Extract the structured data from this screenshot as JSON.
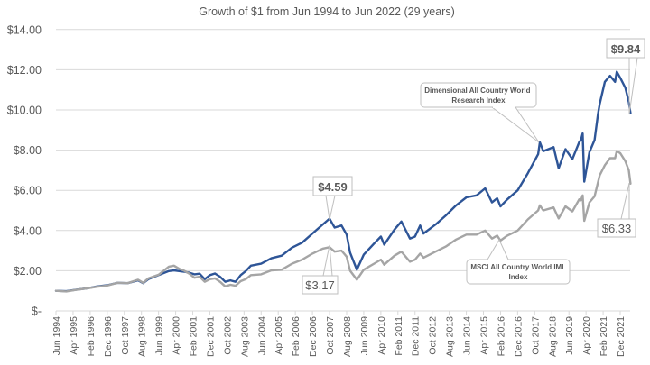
{
  "chart_data": {
    "type": "line",
    "title": "Growth of $1 from Jun 1994 to Jun 2022 (29 years)",
    "xlabel": "",
    "ylabel": "",
    "ylim": [
      0,
      14
    ],
    "grid": "horizontal",
    "legend": "none (series labeled by callouts)",
    "y_ticks": [
      {
        "value": 0,
        "label": "$-"
      },
      {
        "value": 2,
        "label": "$2.00"
      },
      {
        "value": 4,
        "label": "$4.00"
      },
      {
        "value": 6,
        "label": "$6.00"
      },
      {
        "value": 8,
        "label": "$8.00"
      },
      {
        "value": 10,
        "label": "$10.00"
      },
      {
        "value": 12,
        "label": "$12.00"
      },
      {
        "value": 14,
        "label": "$14.00"
      }
    ],
    "x_tick_labels": [
      "Jun 1994",
      "Apr 1995",
      "Feb 1996",
      "Dec 1996",
      "Oct 1997",
      "Aug 1998",
      "Jun 1999",
      "Apr 2000",
      "Feb 2001",
      "Dec 2001",
      "Oct 2002",
      "Aug 2003",
      "Jun 2004",
      "Apr 2005",
      "Feb 2006",
      "Dec 2006",
      "Oct 2007",
      "Aug 2008",
      "Jun 2009",
      "Apr 2010",
      "Feb 2011",
      "Dec 2011",
      "Oct 2012",
      "Aug 2013",
      "Jun 2014",
      "Apr 2015",
      "Feb 2016",
      "Dec 2016",
      "Oct 2017",
      "Aug 2018",
      "Jun 2019",
      "Apr 2020",
      "Feb 2021",
      "Dec 2021"
    ],
    "x_range": [
      "1994-06",
      "2022-06"
    ],
    "series": [
      {
        "name": "Dimensional All Country World Research Index",
        "color": "#2E5597",
        "points": [
          [
            "1994-06",
            1.0
          ],
          [
            "1994-12",
            0.98
          ],
          [
            "1995-06",
            1.06
          ],
          [
            "1995-12",
            1.12
          ],
          [
            "1996-06",
            1.22
          ],
          [
            "1996-12",
            1.28
          ],
          [
            "1997-06",
            1.4
          ],
          [
            "1997-12",
            1.38
          ],
          [
            "1998-06",
            1.52
          ],
          [
            "1998-09",
            1.38
          ],
          [
            "1998-12",
            1.58
          ],
          [
            "1999-06",
            1.78
          ],
          [
            "1999-12",
            1.98
          ],
          [
            "2000-03",
            2.02
          ],
          [
            "2000-06",
            1.98
          ],
          [
            "2000-09",
            1.95
          ],
          [
            "2000-12",
            1.9
          ],
          [
            "2001-03",
            1.82
          ],
          [
            "2001-06",
            1.85
          ],
          [
            "2001-09",
            1.58
          ],
          [
            "2001-12",
            1.78
          ],
          [
            "2002-03",
            1.86
          ],
          [
            "2002-06",
            1.7
          ],
          [
            "2002-09",
            1.45
          ],
          [
            "2002-12",
            1.52
          ],
          [
            "2003-03",
            1.45
          ],
          [
            "2003-06",
            1.78
          ],
          [
            "2003-09",
            1.98
          ],
          [
            "2003-12",
            2.25
          ],
          [
            "2004-06",
            2.35
          ],
          [
            "2004-12",
            2.62
          ],
          [
            "2005-06",
            2.75
          ],
          [
            "2005-12",
            3.15
          ],
          [
            "2006-06",
            3.4
          ],
          [
            "2006-12",
            3.85
          ],
          [
            "2007-06",
            4.3
          ],
          [
            "2007-10",
            4.59
          ],
          [
            "2008-01",
            4.15
          ],
          [
            "2008-05",
            4.25
          ],
          [
            "2008-08",
            3.8
          ],
          [
            "2008-10",
            2.9
          ],
          [
            "2009-02",
            2.05
          ],
          [
            "2009-06",
            2.8
          ],
          [
            "2009-12",
            3.35
          ],
          [
            "2010-04",
            3.7
          ],
          [
            "2010-06",
            3.3
          ],
          [
            "2010-12",
            4.05
          ],
          [
            "2011-04",
            4.45
          ],
          [
            "2011-09",
            3.6
          ],
          [
            "2011-12",
            3.7
          ],
          [
            "2012-03",
            4.25
          ],
          [
            "2012-05",
            3.85
          ],
          [
            "2012-12",
            4.3
          ],
          [
            "2013-06",
            4.75
          ],
          [
            "2013-12",
            5.25
          ],
          [
            "2014-06",
            5.65
          ],
          [
            "2014-12",
            5.75
          ],
          [
            "2015-05",
            6.1
          ],
          [
            "2015-09",
            5.4
          ],
          [
            "2015-12",
            5.6
          ],
          [
            "2016-02",
            5.2
          ],
          [
            "2016-06",
            5.55
          ],
          [
            "2016-12",
            6.0
          ],
          [
            "2017-06",
            6.85
          ],
          [
            "2017-12",
            7.8
          ],
          [
            "2018-01",
            8.39
          ],
          [
            "2018-03",
            7.95
          ],
          [
            "2018-09",
            8.15
          ],
          [
            "2018-12",
            7.1
          ],
          [
            "2019-04",
            8.05
          ],
          [
            "2019-08",
            7.55
          ],
          [
            "2019-12",
            8.4
          ],
          [
            "2020-01",
            8.5
          ],
          [
            "2020-02",
            8.83
          ],
          [
            "2020-03",
            6.43
          ],
          [
            "2020-06",
            7.9
          ],
          [
            "2020-09",
            8.5
          ],
          [
            "2020-11",
            9.8
          ],
          [
            "2020-12",
            10.3
          ],
          [
            "2021-03",
            11.4
          ],
          [
            "2021-06",
            11.7
          ],
          [
            "2021-09",
            11.4
          ],
          [
            "2021-10",
            11.9
          ],
          [
            "2021-12",
            11.6
          ],
          [
            "2022-03",
            11.1
          ],
          [
            "2022-05",
            10.4
          ],
          [
            "2022-06",
            9.84
          ]
        ]
      },
      {
        "name": "MSCI All Country World IMI Index",
        "color": "#A5A5A5",
        "points": [
          [
            "1994-06",
            1.0
          ],
          [
            "1994-12",
            0.97
          ],
          [
            "1995-06",
            1.05
          ],
          [
            "1995-12",
            1.12
          ],
          [
            "1996-06",
            1.2
          ],
          [
            "1996-12",
            1.26
          ],
          [
            "1997-06",
            1.4
          ],
          [
            "1997-12",
            1.38
          ],
          [
            "1998-06",
            1.55
          ],
          [
            "1998-09",
            1.4
          ],
          [
            "1998-12",
            1.62
          ],
          [
            "1999-06",
            1.8
          ],
          [
            "1999-12",
            2.2
          ],
          [
            "2000-03",
            2.25
          ],
          [
            "2000-06",
            2.1
          ],
          [
            "2000-09",
            2.0
          ],
          [
            "2000-12",
            1.85
          ],
          [
            "2001-03",
            1.65
          ],
          [
            "2001-06",
            1.7
          ],
          [
            "2001-09",
            1.45
          ],
          [
            "2001-12",
            1.58
          ],
          [
            "2002-03",
            1.62
          ],
          [
            "2002-06",
            1.45
          ],
          [
            "2002-09",
            1.22
          ],
          [
            "2002-12",
            1.3
          ],
          [
            "2003-03",
            1.25
          ],
          [
            "2003-06",
            1.48
          ],
          [
            "2003-09",
            1.58
          ],
          [
            "2003-12",
            1.78
          ],
          [
            "2004-06",
            1.82
          ],
          [
            "2004-12",
            2.02
          ],
          [
            "2005-06",
            2.05
          ],
          [
            "2005-12",
            2.35
          ],
          [
            "2006-06",
            2.55
          ],
          [
            "2006-12",
            2.85
          ],
          [
            "2007-06",
            3.1
          ],
          [
            "2007-10",
            3.17
          ],
          [
            "2008-01",
            2.95
          ],
          [
            "2008-05",
            3.0
          ],
          [
            "2008-08",
            2.7
          ],
          [
            "2008-10",
            2.0
          ],
          [
            "2009-02",
            1.55
          ],
          [
            "2009-06",
            2.05
          ],
          [
            "2009-12",
            2.35
          ],
          [
            "2010-04",
            2.55
          ],
          [
            "2010-06",
            2.3
          ],
          [
            "2010-12",
            2.75
          ],
          [
            "2011-04",
            2.95
          ],
          [
            "2011-09",
            2.45
          ],
          [
            "2011-12",
            2.55
          ],
          [
            "2012-03",
            2.85
          ],
          [
            "2012-05",
            2.65
          ],
          [
            "2012-12",
            2.95
          ],
          [
            "2013-06",
            3.2
          ],
          [
            "2013-12",
            3.55
          ],
          [
            "2014-06",
            3.8
          ],
          [
            "2014-12",
            3.8
          ],
          [
            "2015-05",
            4.0
          ],
          [
            "2015-09",
            3.6
          ],
          [
            "2015-12",
            3.75
          ],
          [
            "2016-02",
            3.5
          ],
          [
            "2016-06",
            3.75
          ],
          [
            "2016-12",
            4.0
          ],
          [
            "2017-06",
            4.55
          ],
          [
            "2017-12",
            5.0
          ],
          [
            "2018-01",
            5.25
          ],
          [
            "2018-03",
            5.0
          ],
          [
            "2018-09",
            5.15
          ],
          [
            "2018-12",
            4.6
          ],
          [
            "2019-04",
            5.2
          ],
          [
            "2019-08",
            4.95
          ],
          [
            "2019-12",
            5.55
          ],
          [
            "2020-01",
            5.5
          ],
          [
            "2020-02",
            5.75
          ],
          [
            "2020-03",
            4.48
          ],
          [
            "2020-06",
            5.4
          ],
          [
            "2020-09",
            5.7
          ],
          [
            "2020-11",
            6.4
          ],
          [
            "2020-12",
            6.75
          ],
          [
            "2021-03",
            7.25
          ],
          [
            "2021-06",
            7.6
          ],
          [
            "2021-09",
            7.6
          ],
          [
            "2021-10",
            7.95
          ],
          [
            "2021-12",
            7.85
          ],
          [
            "2022-03",
            7.45
          ],
          [
            "2022-05",
            7.0
          ],
          [
            "2022-06",
            6.33
          ]
        ]
      }
    ],
    "annotations": {
      "dfa_end": {
        "text": "$9.84",
        "series": "Dimensional All Country World Research Index",
        "date": "2022-06",
        "value": 9.84
      },
      "dfa_peak": {
        "text": "$4.59",
        "series": "Dimensional All Country World Research Index",
        "date": "2007-10",
        "value": 4.59
      },
      "msci_peak": {
        "text": "$3.17",
        "series": "MSCI All Country World IMI Index",
        "date": "2007-10",
        "value": 3.17
      },
      "msci_end": {
        "text": "$6.33",
        "series": "MSCI All Country World IMI Index",
        "date": "2022-06",
        "value": 6.33
      },
      "dfa_label": {
        "lines": [
          "Dimensional All Country World",
          "Research Index"
        ]
      },
      "msci_label": {
        "lines": [
          "MSCI All Country World IMI",
          "Index"
        ]
      }
    }
  }
}
